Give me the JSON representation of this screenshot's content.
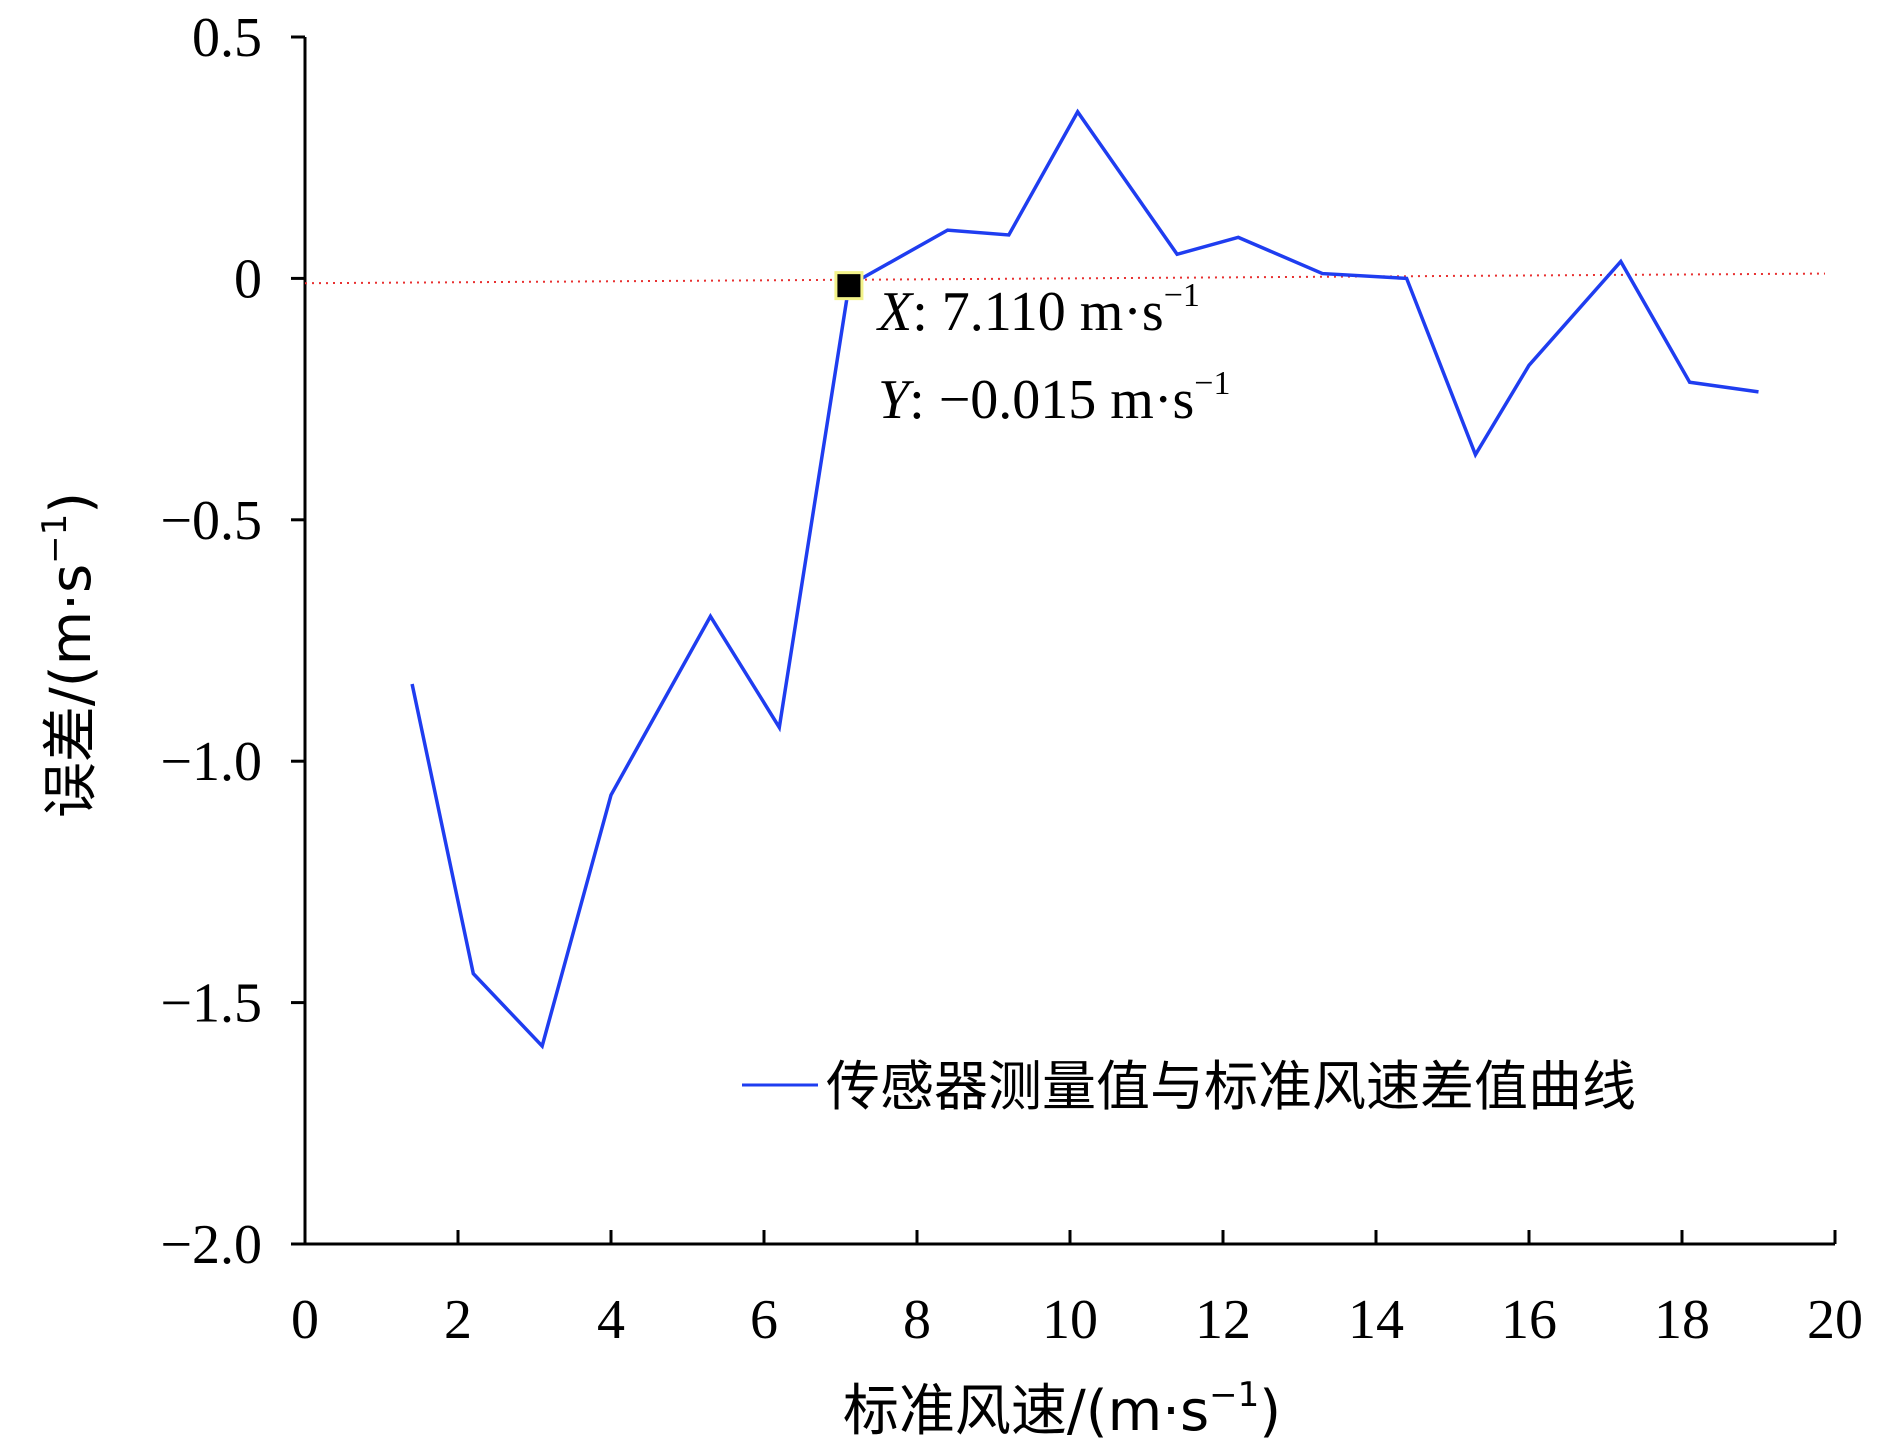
{
  "chart_data": {
    "type": "line",
    "title": "",
    "xlabel": "标准风速/(m·s",
    "xlabel_unit_exp": "−1",
    "xlabel_close": ")",
    "ylabel": "误差/(m·s",
    "ylabel_unit_exp": "−1",
    "ylabel_close": ")",
    "xlim": [
      0,
      20
    ],
    "ylim": [
      -2.0,
      0.5
    ],
    "xticks": [
      0,
      2,
      4,
      6,
      8,
      10,
      12,
      14,
      16,
      18,
      20
    ],
    "xtick_labels": [
      "0",
      "2",
      "4",
      "6",
      "8",
      "10",
      "12",
      "14",
      "16",
      "18",
      "20"
    ],
    "yticks": [
      0.5,
      0,
      -0.5,
      -1.0,
      -1.5,
      -2.0
    ],
    "ytick_labels": [
      "0.5",
      "0",
      "−0.5",
      "−1.0",
      "−1.5",
      "−2.0"
    ],
    "grid": false,
    "legend": "bottom-right",
    "series": [
      {
        "name": "传感器测量值与标准风速差值曲线",
        "color": "#1f3df0",
        "x": [
          1.4,
          2.2,
          3.1,
          4.0,
          5.3,
          6.2,
          7.11,
          8.4,
          9.2,
          10.1,
          11.4,
          12.2,
          13.3,
          14.4,
          15.3,
          16.0,
          17.2,
          18.1,
          19.0
        ],
        "y": [
          -0.84,
          -1.44,
          -1.59,
          -1.07,
          -0.7,
          -0.93,
          -0.015,
          0.1,
          0.09,
          0.345,
          0.05,
          0.085,
          0.01,
          0.0,
          -0.365,
          -0.18,
          0.035,
          -0.215,
          -0.235
        ]
      }
    ],
    "reference_line": {
      "y_start": -0.01,
      "y_end": 0.01,
      "color": "#e83030",
      "style": "dotted"
    },
    "annotation": {
      "point": {
        "x": 7.11,
        "y": -0.015
      },
      "x_prefix": "X",
      "x_text": ": 7.110 m·s",
      "x_exp": "−1",
      "y_prefix": "Y",
      "y_text": ": −0.015 m·s",
      "y_exp": "−1"
    }
  }
}
